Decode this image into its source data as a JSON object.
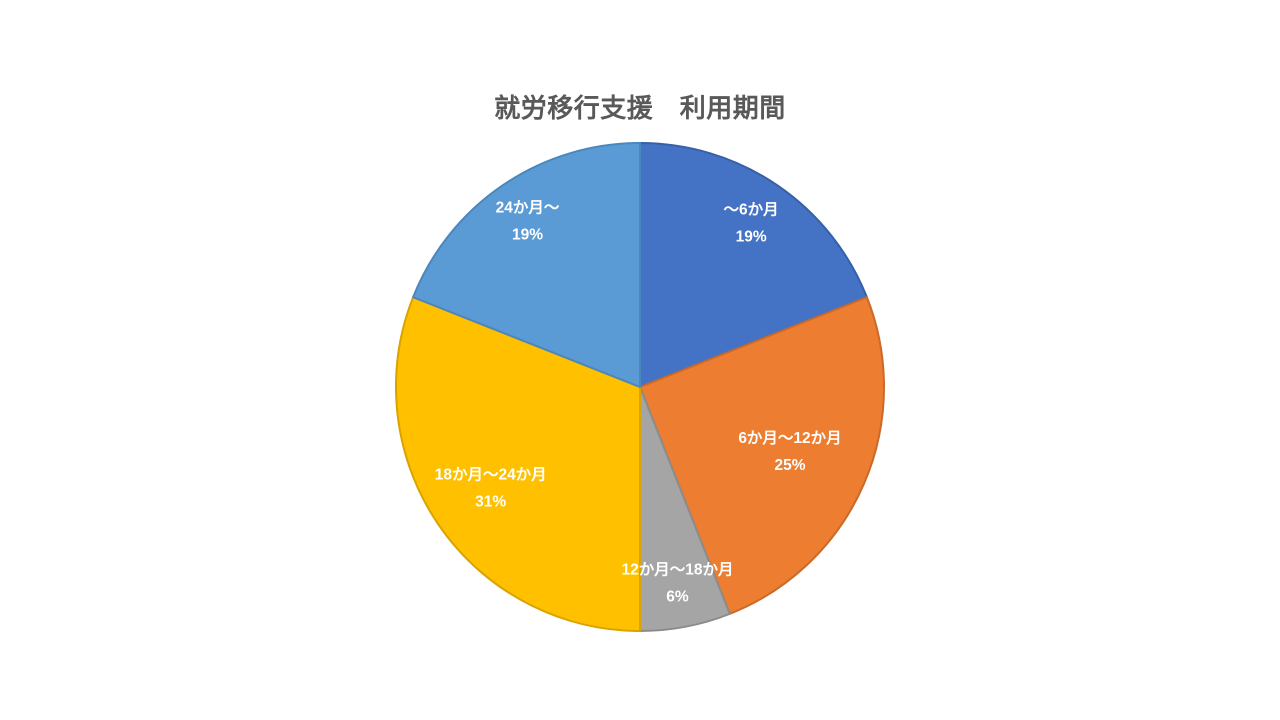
{
  "page": {
    "background": "#ffffff"
  },
  "chart_data": {
    "type": "pie",
    "title": "就労移行支援　利用期間",
    "title_color": "#595959",
    "categories": [
      "～6か月",
      "6か月～12か月",
      "12か月～18か月",
      "18か月～24か月",
      "24か月～"
    ],
    "values": [
      19,
      25,
      6,
      31,
      19
    ],
    "percent_labels": [
      "19%",
      "25%",
      "6%",
      "31%",
      "19%"
    ],
    "slice_colors": [
      "#4472C4",
      "#ED7D31",
      "#A5A5A5",
      "#FFC000",
      "#5B9BD5"
    ],
    "slice_border_colors": [
      "#3760A8",
      "#C96A28",
      "#8C8C8C",
      "#D9A300",
      "#4A87BD"
    ],
    "label_color": "#FFFFFF",
    "start_angle_deg": 0,
    "direction": "clockwise",
    "legend": "none",
    "background": "#ffffff"
  }
}
